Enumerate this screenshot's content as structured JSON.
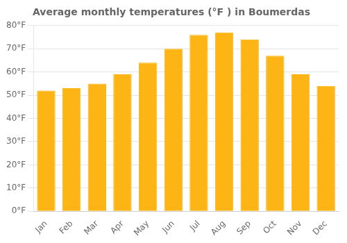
{
  "chart_data": {
    "type": "bar",
    "title": "Average monthly temperatures (°F ) in Boumerdas",
    "categories": [
      "Jan",
      "Feb",
      "Mar",
      "Apr",
      "May",
      "Jun",
      "Jul",
      "Aug",
      "Sep",
      "Oct",
      "Nov",
      "Dec"
    ],
    "values": [
      52,
      53,
      55,
      59,
      64,
      70,
      76,
      77,
      74,
      67,
      59,
      54
    ],
    "color": "#FDB515",
    "ylim": [
      0,
      80
    ],
    "yticks": [
      {
        "value": 0,
        "label": "0°F"
      },
      {
        "value": 10,
        "label": "10°F"
      },
      {
        "value": 20,
        "label": "20°F"
      },
      {
        "value": 30,
        "label": "30°F"
      },
      {
        "value": 40,
        "label": "40°F"
      },
      {
        "value": 50,
        "label": "50°F"
      },
      {
        "value": 60,
        "label": "60°F"
      },
      {
        "value": 70,
        "label": "70°F"
      },
      {
        "value": 80,
        "label": "80°F"
      }
    ],
    "grid": true
  }
}
